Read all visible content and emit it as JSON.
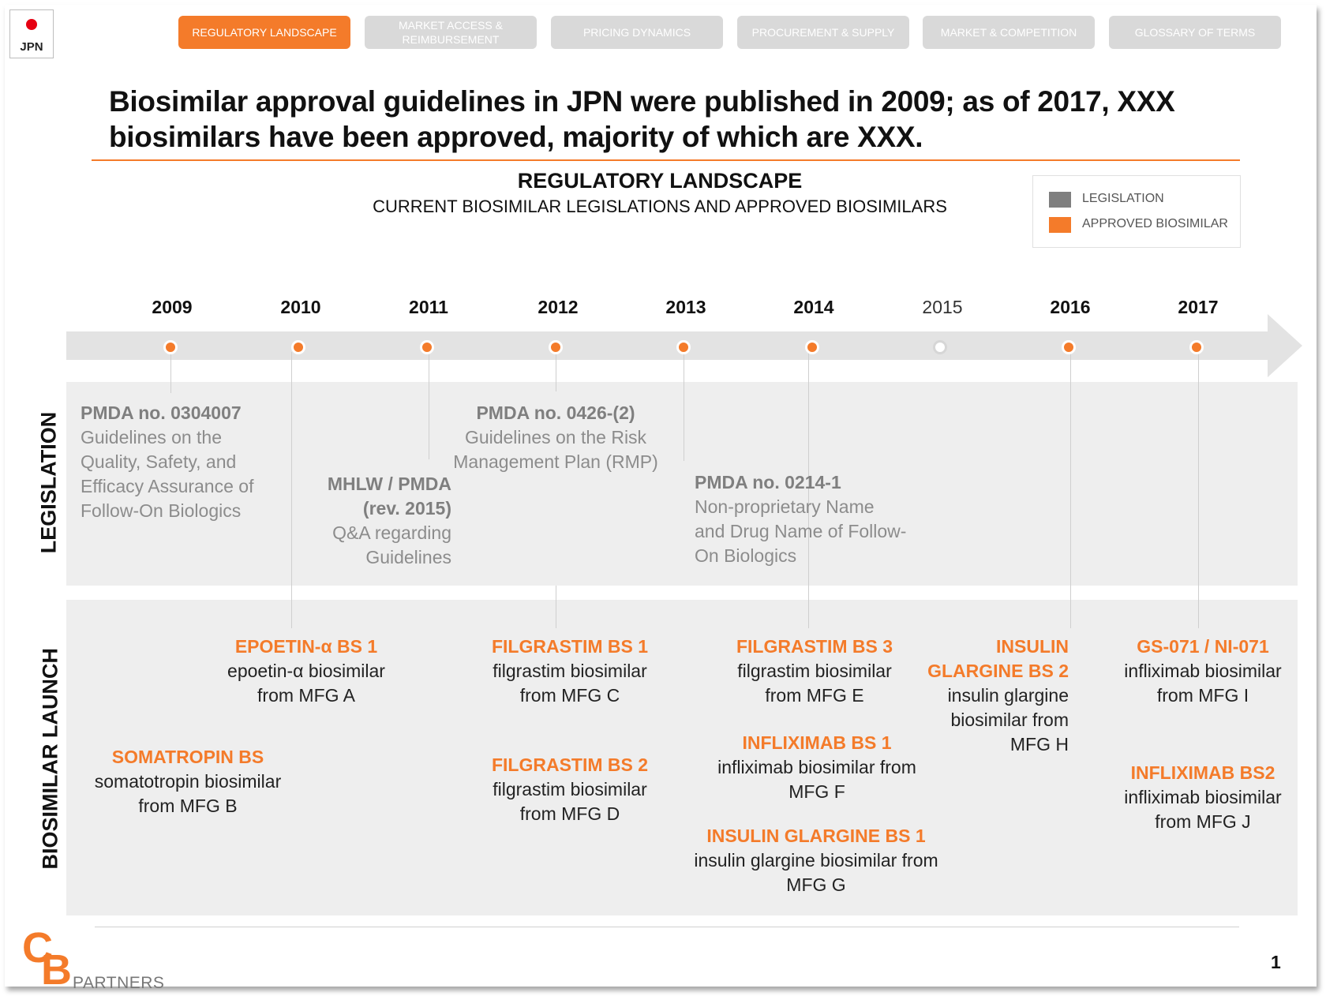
{
  "country": {
    "code": "JPN",
    "flag_color": "#e60012"
  },
  "tabs": [
    {
      "label": "REGULATORY LANDSCAPE",
      "active": true
    },
    {
      "label": "MARKET ACCESS & REIMBURSEMENT",
      "active": false
    },
    {
      "label": "PRICING DYNAMICS",
      "active": false
    },
    {
      "label": "PROCUREMENT & SUPPLY",
      "active": false
    },
    {
      "label": "MARKET & COMPETITION",
      "active": false
    },
    {
      "label": "GLOSSARY OF TERMS",
      "active": false
    }
  ],
  "headline": {
    "line1": "Biosimilar approval guidelines in JPN were published in 2009; as of 2017, XXX",
    "line2": "biosimilars have been approved, majority of which are XXX."
  },
  "section": {
    "title": "REGULATORY LANDSCAPE",
    "subtitle": "CURRENT BIOSIMILAR LEGISLATIONS AND APPROVED BIOSIMILARS"
  },
  "legend": {
    "legislation": "LEGISLATION",
    "approved": "APPROVED BIOSIMILAR",
    "legislation_color": "#7f7f7f",
    "approved_color": "#f47b2a"
  },
  "years": [
    "2009",
    "2010",
    "2011",
    "2012",
    "2013",
    "2014",
    "2015",
    "2016",
    "2017"
  ],
  "row_labels": {
    "legislation": "LEGISLATION",
    "launch": "BIOSIMILAR LAUNCH"
  },
  "legislation": [
    {
      "title": "PMDA no. 0304007",
      "body": "Guidelines on the Quality, Safety, and Efficacy Assurance of Follow-On Biologics"
    },
    {
      "title": "MHLW / PMDA (rev. 2015)",
      "body": "Q&A regarding Guidelines"
    },
    {
      "title": "PMDA no. 0426-(2)",
      "body": "Guidelines on the Risk Management Plan (RMP)"
    },
    {
      "title": "PMDA no. 0214-1",
      "body": "Non-proprietary Name and Drug Name of Follow-On Biologics"
    }
  ],
  "biosimilars": [
    {
      "title": "SOMATROPIN BS",
      "body": "somatotropin biosimilar from MFG B"
    },
    {
      "title": "EPOETIN-α BS 1",
      "body": "epoetin-α biosimilar from MFG A"
    },
    {
      "title": "FILGRASTIM BS 1",
      "body": "filgrastim biosimilar from MFG C"
    },
    {
      "title": "FILGRASTIM BS 2",
      "body": "filgrastim biosimilar from MFG D"
    },
    {
      "title": "FILGRASTIM BS 3",
      "body": "filgrastim biosimilar from MFG E"
    },
    {
      "title": "INFLIXIMAB BS 1",
      "body": "infliximab biosimilar from MFG F"
    },
    {
      "title": "INSULIN GLARGINE BS 1",
      "body": "insulin glargine biosimilar from MFG G"
    },
    {
      "title": "INSULIN GLARGINE BS 2",
      "body": "insulin glargine biosimilar from MFG H"
    },
    {
      "title": "GS-071 / NI-071",
      "body": "infliximab biosimilar from MFG I"
    },
    {
      "title": "INFLIXIMAB BS2",
      "body": "infliximab biosimilar from MFG J"
    }
  ],
  "footer": {
    "logo_c": "C",
    "logo_b": "B",
    "logo_text": "PARTNERS",
    "page": "1"
  },
  "colors": {
    "accent": "#f47b2a",
    "band": "#eeeeee",
    "arrow": "#e3e3e3"
  }
}
